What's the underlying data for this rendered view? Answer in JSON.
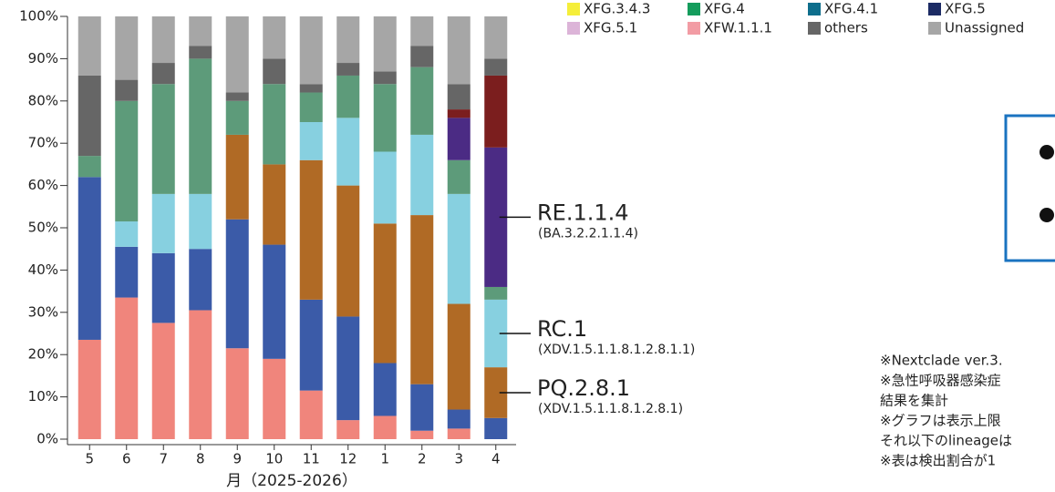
{
  "chart_data": {
    "type": "stacked_bar",
    "categories": [
      "5",
      "6",
      "7",
      "8",
      "9",
      "10",
      "11",
      "12",
      "1",
      "2",
      "3",
      "4"
    ],
    "x_label": "月（2025-2026）",
    "ylim": [
      0,
      100
    ],
    "yticks": [
      {
        "value": 0,
        "label": "0%"
      },
      {
        "value": 10,
        "label": "10%"
      },
      {
        "value": 20,
        "label": "20%"
      },
      {
        "value": 30,
        "label": "30%"
      },
      {
        "value": 40,
        "label": "40%"
      },
      {
        "value": 50,
        "label": "50%"
      },
      {
        "value": 60,
        "label": "60%"
      },
      {
        "value": 70,
        "label": "70%"
      },
      {
        "value": 80,
        "label": "80%"
      },
      {
        "value": 90,
        "label": "90%"
      },
      {
        "value": 100,
        "label": "100%"
      }
    ],
    "series": [
      {
        "color": "#f0857c",
        "values": [
          23.5,
          33.5,
          27.5,
          30.5,
          21.5,
          19,
          11.5,
          4.5,
          5.5,
          2,
          2.5,
          0
        ]
      },
      {
        "color": "#3b5ba8",
        "values": [
          38.5,
          12,
          16.5,
          14.5,
          30.5,
          27,
          21.5,
          24.5,
          12.5,
          11,
          4.5,
          5
        ]
      },
      {
        "name": "PQ.2.8.1",
        "note": "(XDV.1.5.1.1.8.1.2.8.1)",
        "color": "#b06a25",
        "values": [
          0,
          0,
          0,
          0,
          20,
          19,
          33,
          31,
          33,
          40,
          25,
          12
        ]
      },
      {
        "name": "RC.1",
        "note": "(XDV.1.5.1.1.8.1.2.8.1.1)",
        "color": "#87d0e0",
        "values": [
          0,
          6,
          14,
          13,
          0,
          0,
          9,
          16,
          17,
          19,
          26,
          16
        ]
      },
      {
        "color": "#5d9b7a",
        "values": [
          5,
          28.5,
          26,
          32,
          8,
          19,
          7,
          10,
          16,
          16,
          8,
          3
        ]
      },
      {
        "name": "RE.1.1.4",
        "note": "(BA.3.2.2.1.1.4)",
        "color": "#4b2b84",
        "values": [
          0,
          0,
          0,
          0,
          0,
          0,
          0,
          0,
          0,
          0,
          10,
          33
        ]
      },
      {
        "color": "#7b1e1e",
        "values": [
          0,
          0,
          0,
          0,
          0,
          0,
          0,
          0,
          0,
          0,
          2,
          17
        ]
      },
      {
        "color": "#666666",
        "values": [
          19,
          5,
          5,
          3,
          2,
          6,
          2,
          3,
          3,
          5,
          6,
          4
        ]
      },
      {
        "color": "#a6a6a6",
        "values": [
          14,
          15,
          11,
          7,
          18,
          10,
          16,
          11,
          13,
          7,
          16,
          10
        ]
      }
    ],
    "legend": [
      {
        "name": "XFG.3.4.3",
        "color": "#f5ee3a"
      },
      {
        "name": "XFG.4",
        "color": "#149c5c"
      },
      {
        "name": "XFG.4.1",
        "color": "#0e6e8c"
      },
      {
        "name": "XFG.5",
        "color": "#1c2b64"
      },
      {
        "name": "XFG.5.1",
        "color": "#dcb4d8"
      },
      {
        "name": "XFW.1.1.1",
        "color": "#f29ca4"
      },
      {
        "name": "others",
        "color": "#666666"
      },
      {
        "name": "Unassigned",
        "color": "#a6a6a6"
      }
    ],
    "notes": [
      "※Nextclade ver.3.",
      "※急性呼吸器感染症",
      "結果を集計",
      "※グラフは表示上限",
      "それ以下のlineageは",
      "※表は検出割合が1"
    ]
  }
}
